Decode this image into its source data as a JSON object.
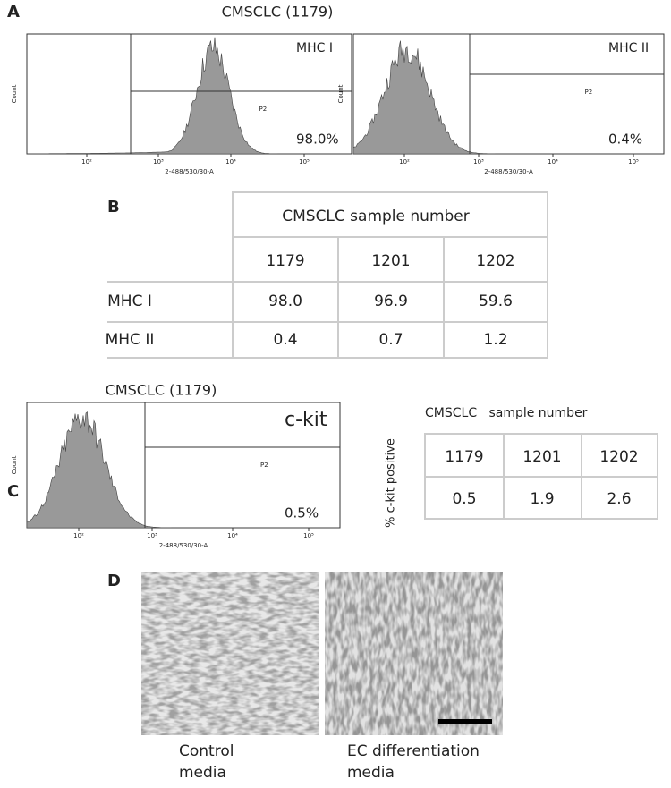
{
  "panel_a": {
    "label": "A",
    "title": "CMSCLC (1179)",
    "histograms": [
      {
        "marker": "MHC I",
        "gate": "P2",
        "percent": "98.0%",
        "y_axis": "Count",
        "x_axis": "2-488/530/30-A",
        "x_ticks": [
          "10²",
          "10³",
          "10⁴",
          "10⁵"
        ]
      },
      {
        "marker": "MHC II",
        "gate": "P2",
        "percent": "0.4%",
        "y_axis": "Count",
        "x_axis": "2-488/530/30-A",
        "x_ticks": [
          "10²",
          "10³",
          "10⁴",
          "10⁵"
        ]
      }
    ]
  },
  "panel_b": {
    "label": "B",
    "table": {
      "header": "CMSCLC sample number",
      "columns": [
        "1179",
        "1201",
        "1202"
      ],
      "rows": [
        [
          "MHC I",
          "98.0",
          "96.9",
          "59.6"
        ],
        [
          "MHC II",
          "0.4",
          "0.7",
          "1.2"
        ]
      ]
    }
  },
  "panel_c": {
    "label": "C",
    "title": "CMSCLC (1179)",
    "histogram": {
      "marker": "c-kit",
      "gate": "P2",
      "percent": "0.5%",
      "y_axis": "Count",
      "x_axis": "2-488/530/30-A",
      "x_ticks": [
        "10²",
        "10³",
        "10⁴",
        "10⁵"
      ]
    },
    "table": {
      "y_label": "% c-kit positive",
      "header": "CMSCLC   sample number",
      "columns": [
        "1179",
        "1201",
        "1202"
      ],
      "values": [
        "0.5",
        "1.9",
        "2.6"
      ]
    }
  },
  "panel_d": {
    "label": "D",
    "captions": [
      [
        "Control",
        "media"
      ],
      [
        "EC differentiation",
        "media"
      ]
    ]
  }
}
